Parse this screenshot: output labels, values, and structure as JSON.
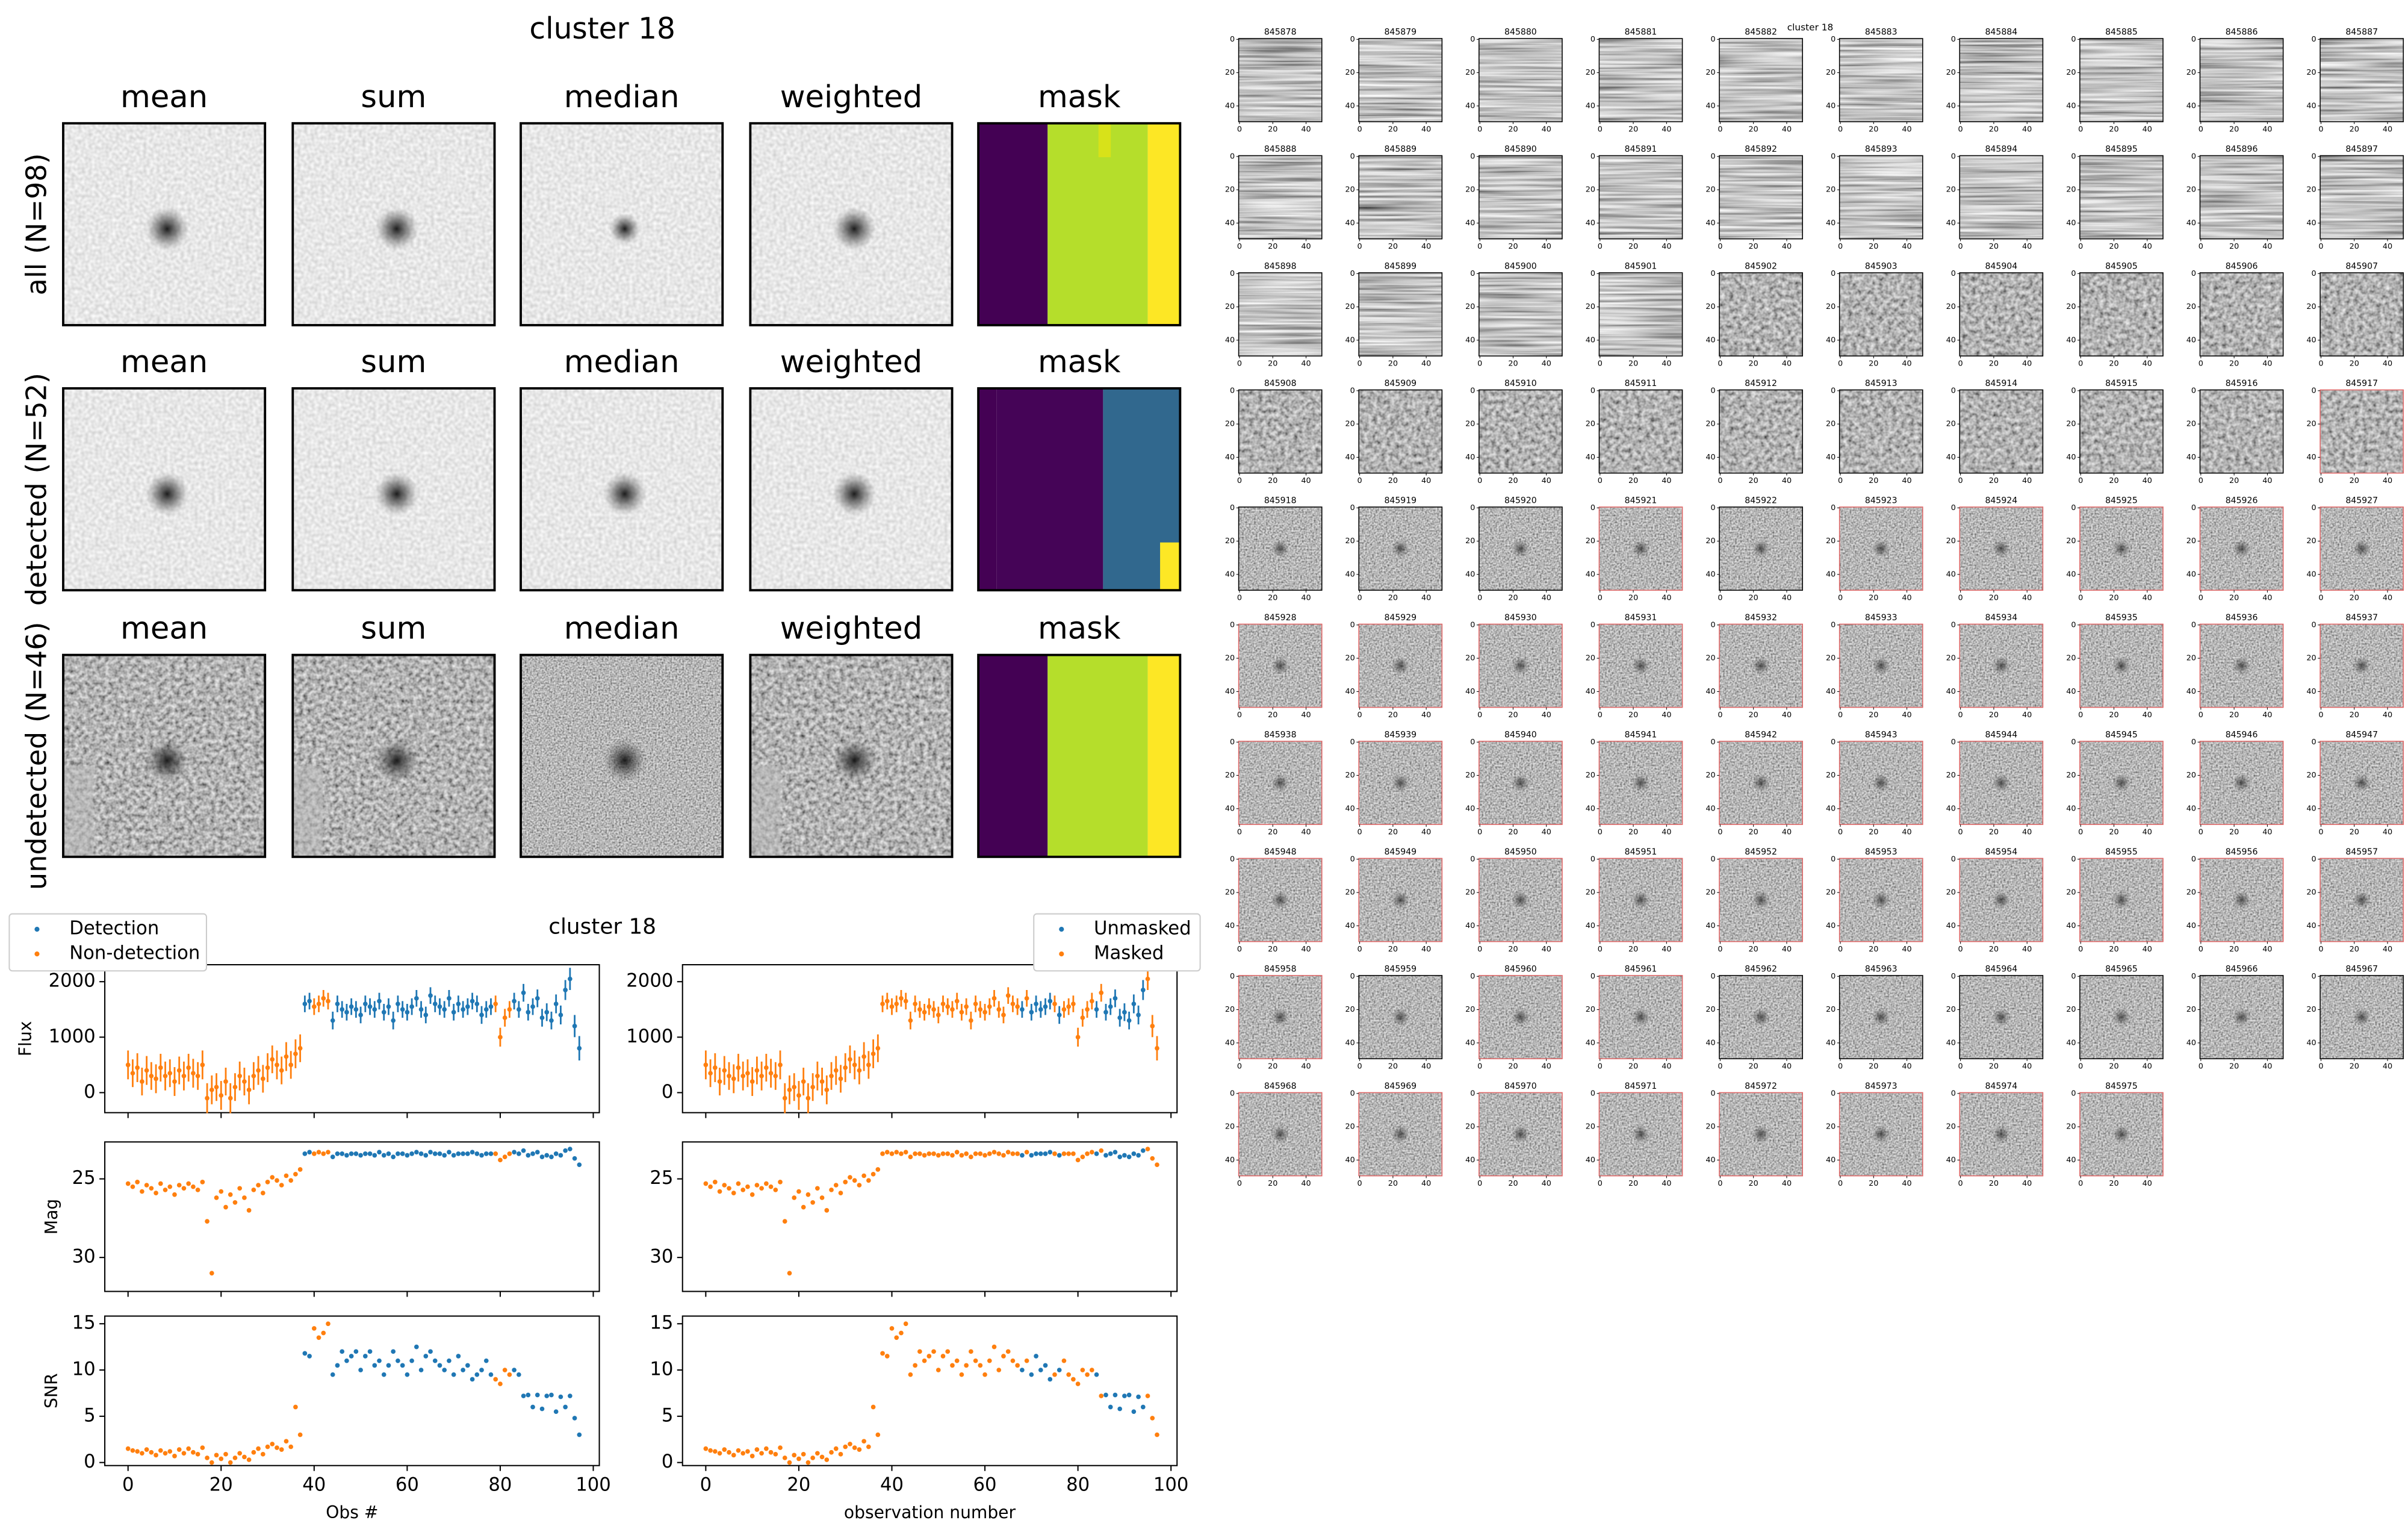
{
  "figure": {
    "title": "cluster 18",
    "columns": [
      "mean",
      "sum",
      "median",
      "weighted",
      "mask"
    ],
    "rows": [
      "all (N=98)",
      "detected (N=52)",
      "undetected (N=46)"
    ]
  },
  "chart_data": {
    "type": "scatter",
    "title": "cluster 18",
    "x": [
      0,
      1,
      2,
      3,
      4,
      5,
      6,
      7,
      8,
      9,
      10,
      11,
      12,
      13,
      14,
      15,
      16,
      17,
      18,
      19,
      20,
      21,
      22,
      23,
      24,
      25,
      26,
      27,
      28,
      29,
      30,
      31,
      32,
      33,
      34,
      35,
      36,
      37,
      38,
      39,
      40,
      41,
      42,
      43,
      44,
      45,
      46,
      47,
      48,
      49,
      50,
      51,
      52,
      53,
      54,
      55,
      56,
      57,
      58,
      59,
      60,
      61,
      62,
      63,
      64,
      65,
      66,
      67,
      68,
      69,
      70,
      71,
      72,
      73,
      74,
      75,
      76,
      77,
      78,
      79,
      80,
      81,
      82,
      83,
      84,
      85,
      86,
      87,
      88,
      89,
      90,
      91,
      92,
      93,
      94,
      95,
      96,
      97
    ],
    "xlim": [
      -5,
      101.3
    ],
    "xticks": [
      0,
      20,
      40,
      60,
      80,
      100
    ],
    "panels": [
      {
        "ylabel": "Flux",
        "ylim": [
          -361,
          2306
        ],
        "yticks": [
          0,
          1000,
          2000
        ],
        "values": [
          500,
          350,
          450,
          200,
          400,
          300,
          250,
          450,
          300,
          350,
          200,
          400,
          300,
          450,
          350,
          300,
          500,
          -100,
          50,
          100,
          -50,
          200,
          -100,
          100,
          300,
          200,
          50,
          300,
          400,
          250,
          450,
          600,
          500,
          400,
          650,
          500,
          700,
          800,
          1600,
          1650,
          1550,
          1600,
          1700,
          1650,
          1300,
          1600,
          1500,
          1450,
          1550,
          1500,
          1400,
          1600,
          1550,
          1500,
          1650,
          1450,
          1550,
          1300,
          1600,
          1500,
          1450,
          1550,
          1700,
          1500,
          1400,
          1750,
          1600,
          1550,
          1500,
          1700,
          1450,
          1600,
          1500,
          1550,
          1650,
          1600,
          1400,
          1500,
          1550,
          1600,
          1000,
          1350,
          1500,
          1650,
          1500,
          1800,
          1450,
          1550,
          1700,
          1350,
          1450,
          1300,
          1600,
          1400,
          1850,
          2050,
          1200,
          800
        ],
        "errors": [
          260,
          250,
          260,
          250,
          260,
          250,
          260,
          250,
          260,
          250,
          260,
          250,
          260,
          250,
          260,
          250,
          260,
          270,
          260,
          250,
          260,
          250,
          270,
          250,
          260,
          250,
          260,
          250,
          260,
          250,
          260,
          250,
          260,
          250,
          260,
          250,
          260,
          250,
          150,
          150,
          150,
          150,
          150,
          150,
          160,
          150,
          150,
          150,
          150,
          150,
          150,
          150,
          150,
          150,
          150,
          150,
          150,
          160,
          150,
          150,
          150,
          150,
          150,
          150,
          150,
          150,
          150,
          150,
          150,
          150,
          150,
          150,
          150,
          150,
          150,
          150,
          160,
          150,
          150,
          150,
          170,
          160,
          150,
          150,
          150,
          160,
          150,
          150,
          160,
          160,
          160,
          160,
          170,
          170,
          180,
          200,
          200,
          220
        ]
      },
      {
        "ylabel": "Mag",
        "ylim": [
          32.16,
          22.65
        ],
        "yticks": [
          25,
          30
        ],
        "values": [
          25.3,
          25.5,
          25.2,
          25.8,
          25.4,
          25.6,
          25.9,
          25.3,
          25.7,
          25.5,
          26.0,
          25.4,
          25.6,
          25.3,
          25.5,
          25.7,
          25.2,
          27.7,
          31.0,
          26.2,
          25.8,
          26.8,
          26.0,
          26.5,
          25.6,
          26.2,
          27.0,
          25.7,
          25.4,
          25.9,
          25.2,
          24.9,
          25.1,
          25.4,
          24.8,
          25.1,
          24.7,
          24.4,
          23.4,
          23.3,
          23.4,
          23.3,
          23.4,
          23.3,
          23.6,
          23.4,
          23.4,
          23.5,
          23.4,
          23.4,
          23.5,
          23.4,
          23.4,
          23.5,
          23.3,
          23.5,
          23.4,
          23.6,
          23.4,
          23.4,
          23.5,
          23.4,
          23.3,
          23.4,
          23.5,
          23.3,
          23.4,
          23.4,
          23.5,
          23.3,
          23.5,
          23.4,
          23.4,
          23.4,
          23.3,
          23.4,
          23.5,
          23.4,
          23.4,
          23.4,
          23.8,
          23.6,
          23.4,
          23.3,
          23.4,
          23.2,
          23.5,
          23.4,
          23.3,
          23.6,
          23.5,
          23.6,
          23.4,
          23.5,
          23.2,
          23.1,
          23.7,
          24.1
        ]
      },
      {
        "ylabel": "SNR",
        "ylim": [
          -0.33,
          15.83
        ],
        "yticks": [
          0,
          5,
          10,
          15
        ],
        "values": [
          1.5,
          1.3,
          1.2,
          1.0,
          1.4,
          1.1,
          0.8,
          1.3,
          1.0,
          1.2,
          0.7,
          1.4,
          1.0,
          1.5,
          1.1,
          0.9,
          1.6,
          0.5,
          0,
          0.8,
          0.4,
          0.9,
          0,
          0.5,
          1.0,
          0.6,
          0.3,
          1.1,
          1.5,
          0.9,
          1.7,
          2.0,
          1.6,
          1.4,
          2.3,
          1.7,
          6.0,
          3.0,
          11.8,
          11.5,
          14.5,
          13.5,
          14.0,
          15.0,
          9.5,
          10.5,
          12.0,
          11.0,
          11.5,
          12.0,
          10.0,
          11.5,
          12.0,
          10.5,
          11.0,
          9.5,
          10.5,
          12.0,
          11.0,
          10.5,
          9.5,
          11.0,
          12.5,
          10.0,
          11.5,
          12.0,
          11.0,
          10.5,
          10.0,
          11.0,
          9.5,
          11.5,
          10.0,
          10.5,
          9.0,
          9.5,
          10.0,
          11.0,
          9.5,
          9.0,
          8.5,
          10.0,
          9.5,
          10.0,
          9.5,
          7.2,
          7.3,
          6.0,
          7.3,
          5.8,
          7.2,
          7.3,
          5.5,
          7.1,
          6.0,
          7.2,
          4.8,
          3.0
        ]
      }
    ],
    "columns": [
      {
        "xlabel": "Obs #",
        "legend": "upper left",
        "series": [
          {
            "name": "Detection",
            "color": "#1f77b4"
          },
          {
            "name": "Non-detection",
            "color": "#ff7f0e"
          }
        ],
        "point_series": [
          1,
          1,
          1,
          1,
          1,
          1,
          1,
          1,
          1,
          1,
          1,
          1,
          1,
          1,
          1,
          1,
          1,
          1,
          1,
          1,
          1,
          1,
          1,
          1,
          1,
          1,
          1,
          1,
          1,
          1,
          1,
          1,
          1,
          1,
          1,
          1,
          1,
          1,
          0,
          0,
          1,
          1,
          1,
          1,
          0,
          0,
          0,
          0,
          0,
          0,
          0,
          0,
          0,
          0,
          0,
          0,
          0,
          0,
          0,
          0,
          0,
          0,
          0,
          0,
          0,
          0,
          0,
          0,
          0,
          0,
          0,
          0,
          0,
          0,
          0,
          0,
          0,
          0,
          0,
          1,
          1,
          1,
          1,
          0,
          0,
          0,
          0,
          0,
          0,
          0,
          0,
          0,
          0,
          0,
          0,
          0,
          0,
          0
        ]
      },
      {
        "xlabel": "observation number",
        "legend": "upper right",
        "series": [
          {
            "name": "Unmasked",
            "color": "#1f77b4"
          },
          {
            "name": "Masked",
            "color": "#ff7f0e"
          }
        ],
        "point_series": [
          1,
          1,
          1,
          1,
          1,
          1,
          1,
          1,
          1,
          1,
          1,
          1,
          1,
          1,
          1,
          1,
          1,
          1,
          1,
          1,
          1,
          1,
          1,
          1,
          1,
          1,
          1,
          1,
          1,
          1,
          1,
          1,
          1,
          1,
          1,
          1,
          1,
          1,
          1,
          1,
          1,
          1,
          1,
          1,
          1,
          1,
          1,
          1,
          1,
          1,
          1,
          1,
          1,
          1,
          1,
          1,
          1,
          1,
          1,
          1,
          1,
          1,
          1,
          1,
          1,
          1,
          1,
          1,
          0,
          1,
          0,
          0,
          0,
          0,
          0,
          1,
          0,
          1,
          1,
          1,
          1,
          1,
          1,
          1,
          0,
          1,
          0,
          0,
          0,
          0,
          0,
          0,
          0,
          0,
          0,
          1,
          1,
          1
        ]
      }
    ]
  },
  "thumbnails": {
    "title": "cluster 18",
    "xlim": [
      -0.5,
      49.5
    ],
    "ylim": [
      -0.5,
      49.5
    ],
    "xticks": [
      0,
      20,
      40
    ],
    "yticks": [
      0,
      20,
      40
    ],
    "highlight_color": "#e06666",
    "ids": [
      845878,
      845879,
      845880,
      845881,
      845882,
      845883,
      845884,
      845885,
      845886,
      845887,
      845888,
      845889,
      845890,
      845891,
      845892,
      845893,
      845894,
      845895,
      845896,
      845897,
      845898,
      845899,
      845900,
      845901,
      845902,
      845903,
      845904,
      845905,
      845906,
      845907,
      845908,
      845909,
      845910,
      845911,
      845912,
      845913,
      845914,
      845915,
      845916,
      845917,
      845918,
      845919,
      845920,
      845921,
      845922,
      845923,
      845924,
      845925,
      845926,
      845927,
      845928,
      845929,
      845930,
      845931,
      845932,
      845933,
      845934,
      845935,
      845936,
      845937,
      845938,
      845939,
      845940,
      845941,
      845942,
      845943,
      845944,
      845945,
      845946,
      845947,
      845948,
      845949,
      845950,
      845951,
      845952,
      845953,
      845954,
      845955,
      845956,
      845957,
      845958,
      845959,
      845960,
      845961,
      845962,
      845963,
      845964,
      845965,
      845966,
      845967,
      845968,
      845969,
      845970,
      845971,
      845972,
      845973,
      845974,
      845975
    ],
    "highlighted": [
      845917,
      845921,
      845923,
      845924,
      845925,
      845926,
      845927,
      845928,
      845929,
      845930,
      845931,
      845932,
      845933,
      845934,
      845935,
      845936,
      845937,
      845938,
      845939,
      845940,
      845941,
      845942,
      845943,
      845944,
      845945,
      845946,
      845947,
      845948,
      845949,
      845950,
      845951,
      845952,
      845953,
      845954,
      845955,
      845956,
      845957,
      845958,
      845960,
      845961,
      845968,
      845969,
      845970,
      845971,
      845972,
      845973,
      845974,
      845975
    ]
  }
}
